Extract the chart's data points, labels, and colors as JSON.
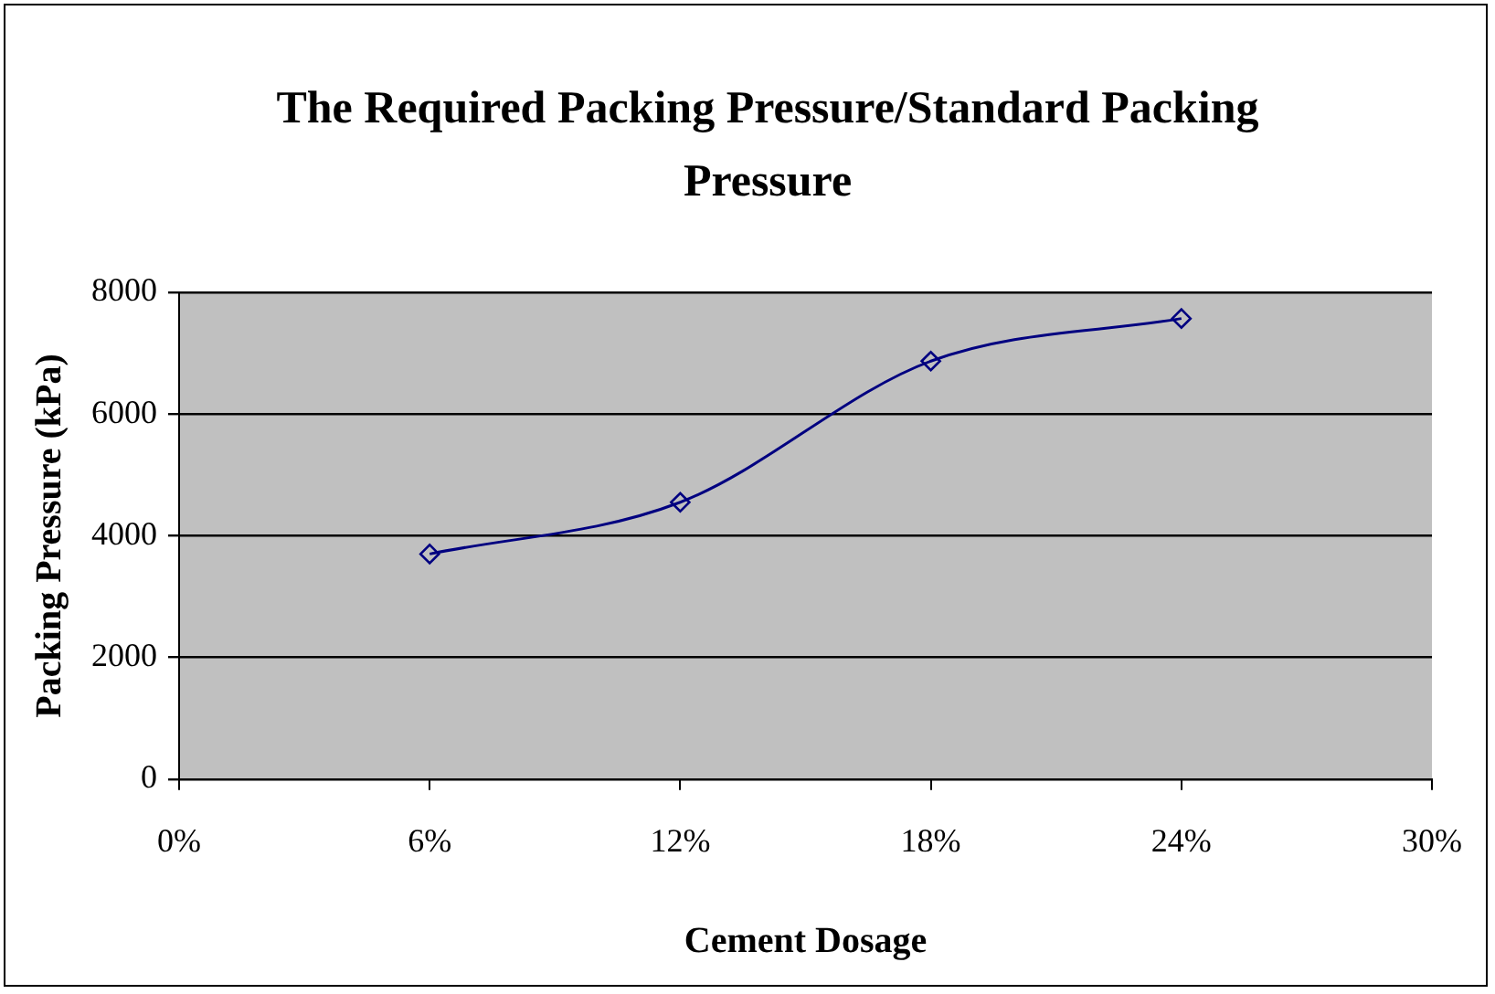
{
  "chart_data": {
    "type": "line",
    "title": "The Required Packing Pressure/Standard Packing Pressure",
    "xlabel": "Cement Dosage",
    "ylabel": "Packing Pressure (kPa)",
    "x": [
      6,
      12,
      18,
      24
    ],
    "series": [
      {
        "color": "#000080",
        "values": [
          3700,
          4550,
          6870,
          7570
        ]
      }
    ],
    "xlim": [
      0,
      30
    ],
    "xticks": [
      {
        "value": 0,
        "label": "0%"
      },
      {
        "value": 6,
        "label": "6%"
      },
      {
        "value": 12,
        "label": "12%"
      },
      {
        "value": 18,
        "label": "18%"
      },
      {
        "value": 24,
        "label": "24%"
      },
      {
        "value": 30,
        "label": "30%"
      }
    ],
    "ylim": [
      0,
      8000
    ],
    "yticks": [
      0,
      2000,
      4000,
      6000,
      8000
    ],
    "grid": "y",
    "legend": false,
    "marker": "diamond",
    "line_style": "solid"
  }
}
